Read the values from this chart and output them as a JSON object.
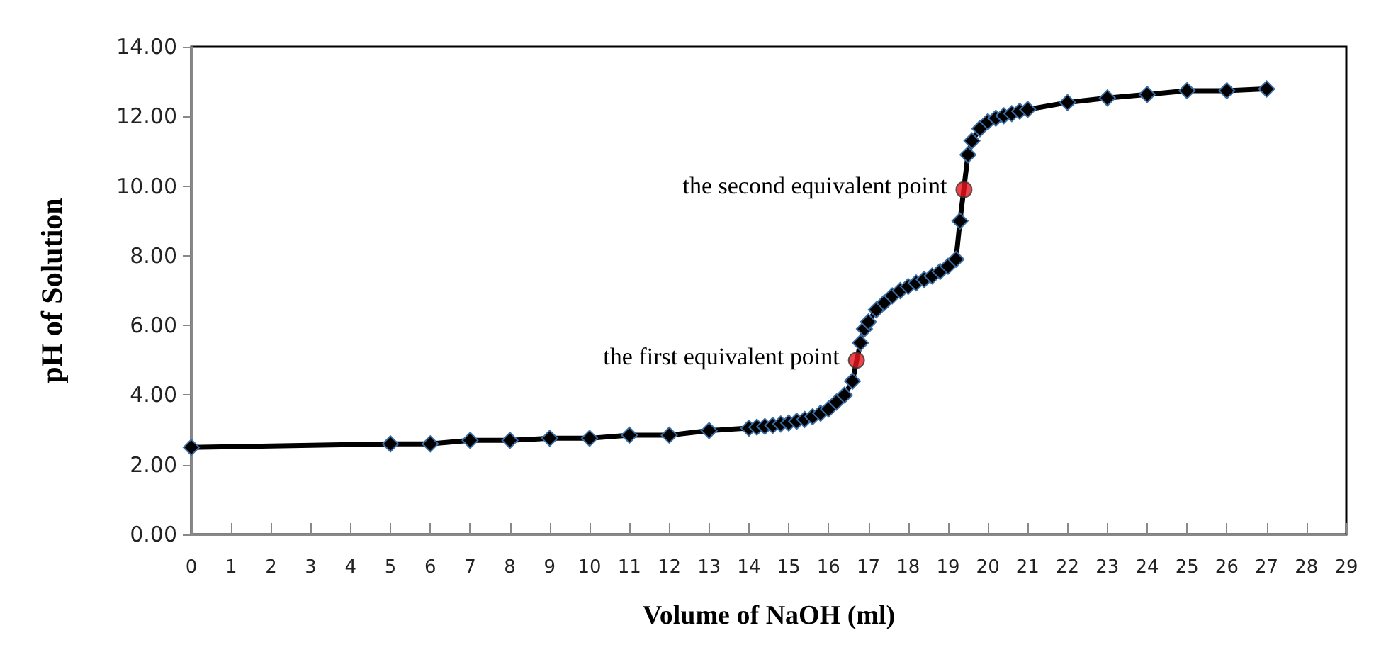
{
  "chart_data": {
    "type": "line",
    "xlabel": "Volume of NaOH (ml)",
    "ylabel": "pH of Solution",
    "xlim": [
      0,
      29
    ],
    "xticks": [
      0,
      1,
      2,
      3,
      4,
      5,
      6,
      7,
      8,
      9,
      10,
      11,
      12,
      13,
      14,
      15,
      16,
      17,
      18,
      19,
      20,
      21,
      22,
      23,
      24,
      25,
      26,
      27,
      28,
      29
    ],
    "ylim": [
      0,
      14
    ],
    "yticks": [
      {
        "value": 0,
        "label": "0.00"
      },
      {
        "value": 2,
        "label": "2.00"
      },
      {
        "value": 4,
        "label": "4.00"
      },
      {
        "value": 6,
        "label": "6.00"
      },
      {
        "value": 8,
        "label": "8.00"
      },
      {
        "value": 10,
        "label": "10.00"
      },
      {
        "value": 12,
        "label": "12.00"
      },
      {
        "value": 14,
        "label": "14.00"
      }
    ],
    "grid": false,
    "marker": "diamond",
    "line_style": "solid",
    "series": [
      {
        "color": "#000000",
        "x": [
          0,
          5,
          6,
          7,
          8,
          9,
          10,
          11,
          12,
          13,
          14.0,
          14.2,
          14.4,
          14.6,
          14.8,
          15.0,
          15.2,
          15.4,
          15.6,
          15.8,
          16.0,
          16.2,
          16.4,
          16.6,
          16.8,
          16.9,
          17.0,
          17.2,
          17.4,
          17.6,
          17.8,
          18.0,
          18.2,
          18.4,
          18.6,
          18.8,
          19.0,
          19.2,
          19.3,
          19.5,
          19.6,
          19.8,
          20.0,
          20.2,
          20.4,
          20.6,
          20.8,
          21,
          22,
          23,
          24,
          25,
          26,
          27
        ],
        "values": [
          2.5,
          2.6,
          2.6,
          2.7,
          2.7,
          2.76,
          2.76,
          2.85,
          2.85,
          2.98,
          3.05,
          3.08,
          3.1,
          3.13,
          3.17,
          3.2,
          3.25,
          3.3,
          3.38,
          3.48,
          3.6,
          3.8,
          4.0,
          4.4,
          5.5,
          5.9,
          6.1,
          6.45,
          6.65,
          6.85,
          7.0,
          7.12,
          7.22,
          7.32,
          7.42,
          7.55,
          7.7,
          7.9,
          9.0,
          10.9,
          11.3,
          11.65,
          11.85,
          11.95,
          12.02,
          12.08,
          12.15,
          12.2,
          12.4,
          12.53,
          12.63,
          12.74,
          12.74,
          12.79
        ]
      },
      {
        "type": "scatter",
        "color": "#e8141c",
        "marker": "circle",
        "x": [
          16.7,
          19.4
        ],
        "values": [
          5.0,
          9.9
        ]
      }
    ],
    "annotations": [
      {
        "text": "the first equivalent point",
        "x": 16.7,
        "y": 5.0
      },
      {
        "text": "the second equivalent point",
        "x": 19.4,
        "y": 9.9
      }
    ]
  }
}
